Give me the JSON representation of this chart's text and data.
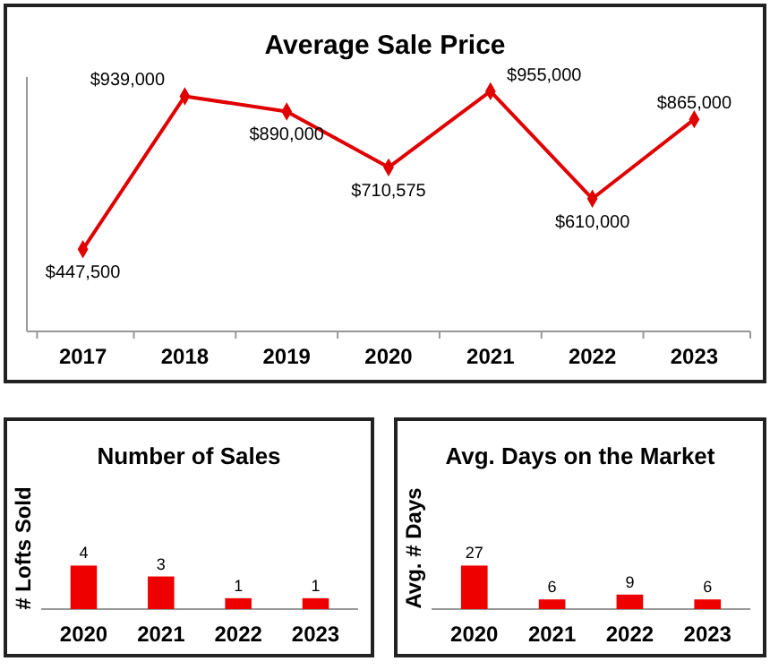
{
  "chart_data": [
    {
      "type": "line",
      "title": "Average Sale Price",
      "categories": [
        "2017",
        "2018",
        "2019",
        "2020",
        "2021",
        "2022",
        "2023"
      ],
      "series": [
        {
          "color": "#e00000",
          "values": [
            447500,
            939000,
            890000,
            710575,
            955000,
            610000,
            865000
          ],
          "value_labels": [
            "$447,500",
            "$939,000",
            "$890,000",
            "$710,575",
            "$955,000",
            "$610,000",
            "$865,000"
          ]
        }
      ],
      "tick_labels": "x",
      "marker": "diamond",
      "line_style": "solid"
    },
    {
      "type": "bar",
      "title": "Number of Sales",
      "ylabel": "# Lofts Sold",
      "categories": [
        "2020",
        "2021",
        "2022",
        "2023"
      ],
      "values": [
        4,
        3,
        1,
        1
      ],
      "color": "#ee0000",
      "tick_labels": "x",
      "data_labels": true
    },
    {
      "type": "bar",
      "title": "Avg. Days on the Market",
      "ylabel": "Avg. # Days",
      "categories": [
        "2020",
        "2021",
        "2022",
        "2023"
      ],
      "values": [
        27,
        6,
        9,
        6
      ],
      "color": "#ee0000",
      "tick_labels": "x",
      "data_labels": true
    }
  ]
}
